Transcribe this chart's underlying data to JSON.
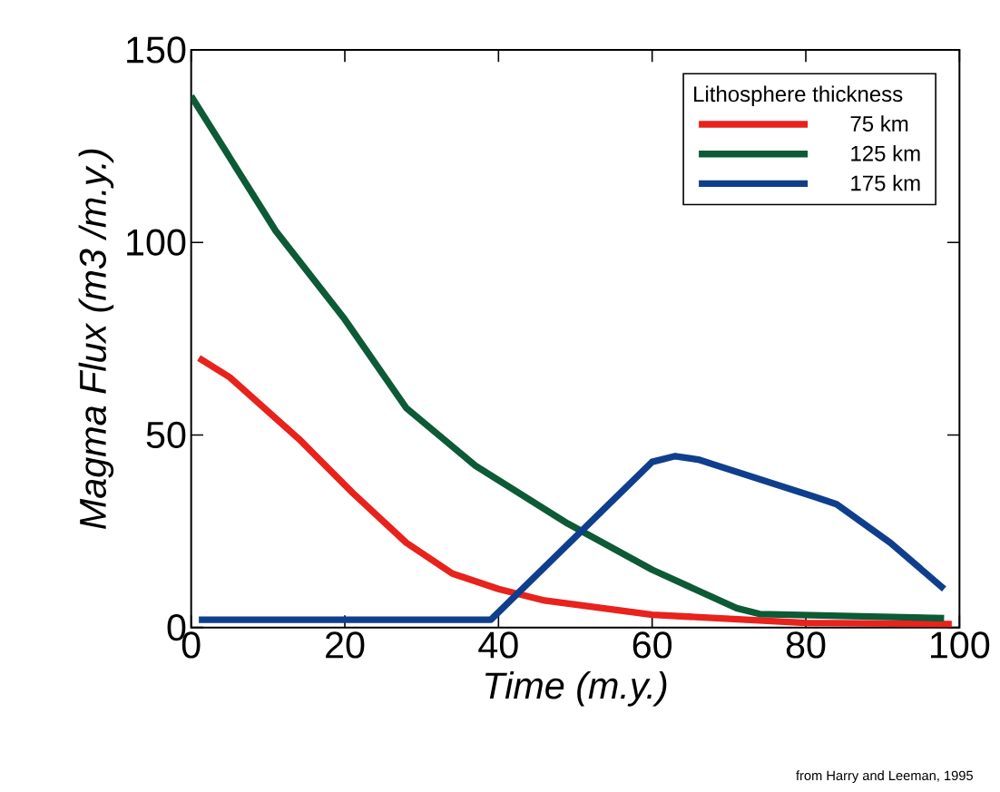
{
  "chart_data": {
    "type": "line",
    "xlabel": "Time (m.y.)",
    "ylabel": "Magma Flux (m3 /m.y.)",
    "legend_title": "Lithosphere thickness",
    "annotations": [
      "from Harry and Leeman, 1995"
    ],
    "xlim": [
      0,
      100
    ],
    "ylim": [
      0,
      150
    ],
    "xticks": [
      0,
      20,
      40,
      60,
      80,
      100
    ],
    "yticks": [
      0,
      50,
      100,
      150
    ],
    "grid": false,
    "legend": "top right",
    "line_style": "solid",
    "marker": "none",
    "series": [
      {
        "name": "75 km",
        "color": "#e8221c",
        "x": [
          1,
          5,
          14,
          21,
          28,
          34,
          40,
          46,
          60,
          80,
          99
        ],
        "values": [
          70,
          65,
          49,
          35,
          22,
          14,
          10,
          7,
          3.3,
          1.2,
          0.9
        ]
      },
      {
        "name": "125 km",
        "color": "#0d5a36",
        "x": [
          0,
          11,
          20,
          28,
          37,
          49,
          60,
          71,
          74,
          98
        ],
        "values": [
          138,
          103,
          80,
          57,
          42,
          27,
          15,
          5,
          3.5,
          2.4
        ]
      },
      {
        "name": "175 km",
        "color": "#0f3f8c",
        "x": [
          1,
          39,
          60,
          63,
          66,
          81,
          84,
          91,
          98
        ],
        "values": [
          2,
          2,
          43,
          44.5,
          43.6,
          34,
          32,
          22,
          10
        ]
      }
    ]
  }
}
